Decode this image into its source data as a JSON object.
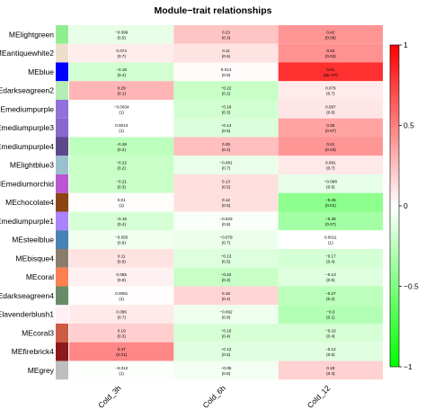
{
  "chart_data": {
    "type": "heatmap",
    "title": "Module−trait relationships",
    "x_categories": [
      "Cold_3h",
      "Cold_6h",
      "Cold_12"
    ],
    "y_categories": [
      "MElightgreen",
      "MEantiquewhite2",
      "MEblue",
      "MEdarkseagreen2",
      "MEmediumpurple",
      "MEmediumpurple3",
      "MEmediumpurple4",
      "MElightblue3",
      "MEmediumorchid",
      "MEchocolate4",
      "MEmediumpurple1",
      "MEsteelblue",
      "MEbisque4",
      "MEcoral",
      "MEdarkseagreen4",
      "MElavenderblush1",
      "MEcoral3",
      "MEfirebrick4",
      "MEgrey"
    ],
    "module_colors": [
      "#90ee90",
      "#eedfcc",
      "#0000ff",
      "#b4eeb4",
      "#9370db",
      "#8968cd",
      "#5d478b",
      "#9ac0cd",
      "#ba55d3",
      "#8b4513",
      "#ab82ff",
      "#4682b4",
      "#8b7d6b",
      "#ff7f50",
      "#698b69",
      "#fff0f5",
      "#cd5b45",
      "#8b1a1a",
      "#bebebe"
    ],
    "correlations": [
      [
        -0.099,
        0.23,
        0.42
      ],
      [
        0.074,
        0.11,
        0.43
      ],
      [
        -0.18,
        0.014,
        0.81
      ],
      [
        0.29,
        -0.22,
        0.079
      ],
      [
        -0.0034,
        -0.18,
        0.097
      ],
      [
        0.0013,
        -0.14,
        0.36
      ],
      [
        -0.26,
        0.25,
        0.41
      ],
      [
        -0.22,
        -0.081,
        0.091
      ],
      [
        -0.21,
        0.13,
        -0.098
      ],
      [
        0.01,
        0.12,
        -0.45
      ],
      [
        -0.16,
        -0.023,
        -0.36
      ],
      [
        -0.055,
        -0.079,
        0.0011
      ],
      [
        0.11,
        -0.13,
        -0.17
      ],
      [
        0.055,
        -0.22,
        -0.13
      ],
      [
        0.0061,
        0.16,
        -0.27
      ],
      [
        0.086,
        -0.062,
        -0.3
      ],
      [
        0.19,
        -0.16,
        -0.16
      ],
      [
        0.47,
        -0.12,
        -0.12
      ],
      [
        -0.012,
        -0.05,
        0.18
      ]
    ],
    "pvalues": [
      [
        "0.5",
        "0.3",
        "0.06"
      ],
      [
        "0.7",
        "0.6",
        "0.02"
      ],
      [
        "0.4",
        "0.9",
        "6e−07"
      ],
      [
        "0.1",
        "0.2",
        "0.7"
      ],
      [
        "1",
        "0.3",
        "0.6"
      ],
      [
        "1",
        "0.5",
        "0.07"
      ],
      [
        "0.2",
        "0.2",
        "0.03"
      ],
      [
        "0.2",
        "0.7",
        "0.7"
      ],
      [
        "0.3",
        "0.5",
        "0.6"
      ],
      [
        "1",
        "0.5",
        "0.01"
      ],
      [
        "0.4",
        "0.9",
        "0.07"
      ],
      [
        "0.8",
        "0.7",
        "1"
      ],
      [
        "0.6",
        "0.5",
        "0.4"
      ],
      [
        "0.8",
        "0.3",
        "0.5"
      ],
      [
        "1",
        "0.4",
        "0.2"
      ],
      [
        "0.7",
        "0.8",
        "0.1"
      ],
      [
        "0.3",
        "0.4",
        "0.4"
      ],
      [
        "0.01",
        "0.5",
        "0.6"
      ],
      [
        "1",
        "0.8",
        "0.4"
      ]
    ],
    "colorbar": {
      "ticks": [
        1,
        0.5,
        0,
        -0.5,
        -1
      ],
      "tick_labels": [
        "1",
        "0.5",
        "0",
        "−0.5",
        "−1"
      ],
      "low_color": "#00ff00",
      "mid_color": "#ffffff",
      "high_color": "#ff0000",
      "range": [
        -1,
        1
      ],
      "placement": "right"
    }
  }
}
